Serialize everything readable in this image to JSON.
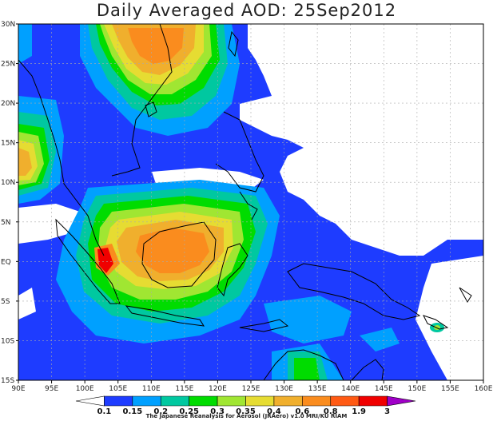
{
  "title": "Daily Averaged AOD: 25Sep2012",
  "footer": "The Japanese Reanalysis for Aerosol (JRAero) v1.0 MRI/KU RIAM",
  "lon_labels": [
    "90E",
    "95E",
    "100E",
    "105E",
    "110E",
    "115E",
    "120E",
    "125E",
    "130E",
    "135E",
    "140E",
    "145E",
    "150E",
    "155E",
    "160E"
  ],
  "lat_labels": [
    "30N",
    "25N",
    "20N",
    "15N",
    "10N",
    "5N",
    "EQ",
    "5S",
    "10S",
    "15S"
  ],
  "colorbar": {
    "levels": [
      "0.1",
      "0.15",
      "0.2",
      "0.25",
      "0.3",
      "0.35",
      "0.4",
      "0.6",
      "0.8",
      "1.9",
      "3"
    ],
    "colors": [
      "#ffffff",
      "#1e3cff",
      "#00a0ff",
      "#00c8a0",
      "#00dc00",
      "#a0e632",
      "#e6dc32",
      "#f0af2d",
      "#fa8c1e",
      "#ff5a14",
      "#f00000",
      "#a000c8"
    ]
  },
  "colors": {
    "background": "#1e3cff",
    "coast": "#000000",
    "grid": "#aaaaaa"
  }
}
